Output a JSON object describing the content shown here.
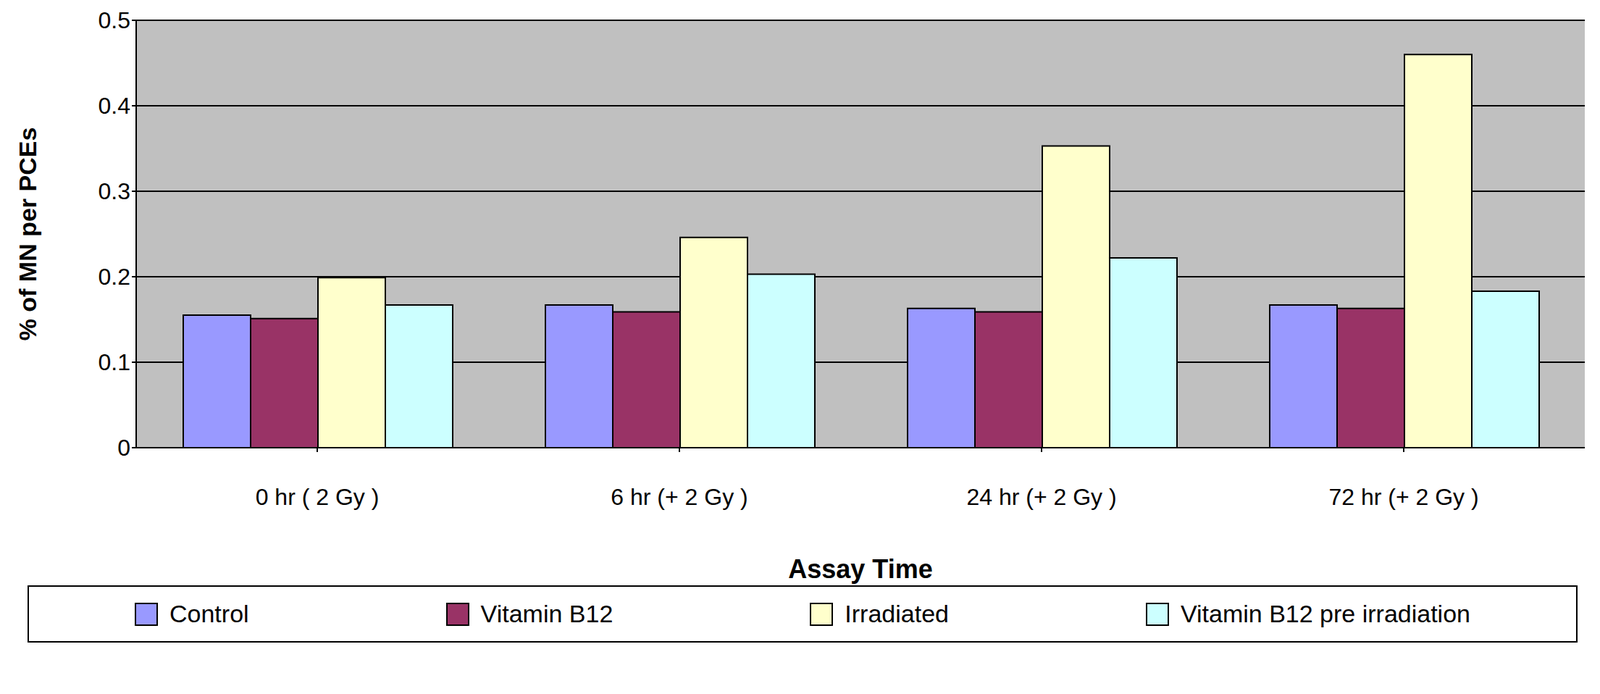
{
  "chart_data": {
    "type": "bar",
    "x_label": "Assay Time",
    "y_label": "% of MN per PCEs",
    "categories": [
      "0 hr ( 2 Gy )",
      "6 hr  (+ 2 Gy )",
      "24 hr (+ 2 Gy )",
      "72 hr (+ 2 Gy )"
    ],
    "series": [
      {
        "name": "Control",
        "color": "#9999ff",
        "values": [
          0.155,
          0.167,
          0.163,
          0.167
        ]
      },
      {
        "name": "Vitamin B12",
        "color": "#993366",
        "values": [
          0.151,
          0.159,
          0.159,
          0.163
        ]
      },
      {
        "name": "Irradiated",
        "color": "#ffffcc",
        "values": [
          0.199,
          0.246,
          0.353,
          0.46
        ]
      },
      {
        "name": "Vitamin B12 pre irradiation",
        "color": "#ccffff",
        "values": [
          0.167,
          0.203,
          0.222,
          0.183
        ]
      }
    ],
    "ylim": [
      0,
      0.5
    ],
    "yticks": [
      0,
      0.1,
      0.2,
      0.3,
      0.4,
      0.5
    ],
    "grid": true,
    "legend": "bottom"
  }
}
